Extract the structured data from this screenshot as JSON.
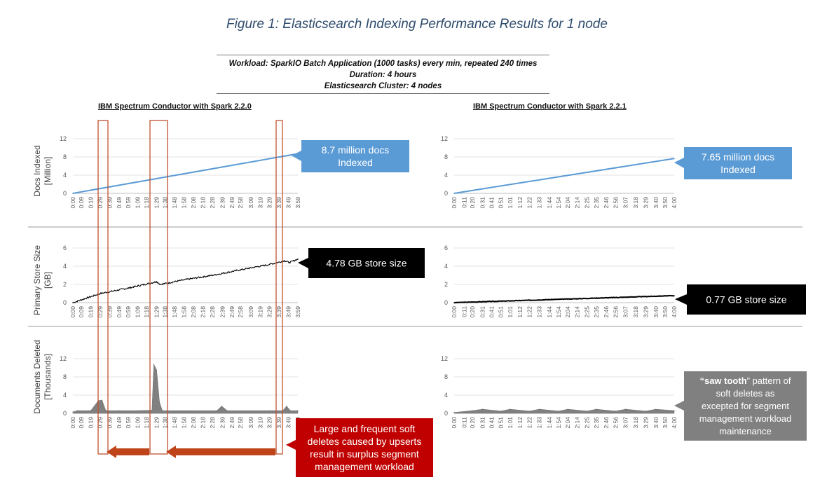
{
  "title": "Figure 1: Elasticsearch Indexing Performance Results for 1 node",
  "workload": {
    "line1": "Workload: SparkIO Batch Application (1000 tasks) every min, repeated 240 times",
    "line2": "Duration: 4 hours",
    "line3": "Elasticsearch Cluster: 4 nodes"
  },
  "subtitles": {
    "left": "IBM Spectrum Conductor with Spark 2.2.0",
    "right": "IBM Spectrum Conductor with Spark 2.2.1"
  },
  "ylabels": {
    "docs": [
      "Docs Indexed",
      "[Million]"
    ],
    "store": [
      "Primary Store Size",
      "[GB]"
    ],
    "deleted": [
      "Documents Deleted",
      "[Thousands]"
    ]
  },
  "x_ticks_left": [
    "0:00",
    "0:09",
    "0:19",
    "0:29",
    "0:39",
    "0:49",
    "0:59",
    "1:09",
    "1:18",
    "1:29",
    "1:38",
    "1:48",
    "1:58",
    "2:08",
    "2:18",
    "2:28",
    "2:39",
    "2:49",
    "2:58",
    "3:09",
    "3:19",
    "3:29",
    "3:39",
    "3:49",
    "3:59"
  ],
  "x_ticks_right": [
    "0:00",
    "0:11",
    "0:20",
    "0:31",
    "0:41",
    "0:51",
    "1:01",
    "1:12",
    "1:22",
    "1:33",
    "1:44",
    "1:54",
    "2:04",
    "2:14",
    "2:25",
    "2:35",
    "2:46",
    "2:56",
    "3:07",
    "3:18",
    "3:29",
    "3:40",
    "3:50",
    "4:00"
  ],
  "callouts": {
    "docs_left": [
      "8.7 million docs",
      "Indexed"
    ],
    "docs_right": [
      "7.65 million docs",
      "Indexed"
    ],
    "store_left": [
      "4.78 GB store size"
    ],
    "store_right": [
      "0.77 GB store size"
    ],
    "deleted_left": [
      "Large and frequent soft",
      "deletes caused by upserts",
      "result in surplus segment",
      "management workload"
    ],
    "deleted_right_bold": "“saw tooth",
    "deleted_right_rest": "” pattern of",
    "deleted_right": [
      "soft deletes as",
      "excepted for segment",
      "management workload",
      "maintenance"
    ]
  },
  "colors": {
    "blue_line": "#5b9bd5",
    "blue_box": "#5b9bd5",
    "black_box": "#000000",
    "red_box": "#c00000",
    "red_arrow": "#c0441a",
    "gray_box": "#808080",
    "area_fill": "#808080",
    "highlight_rect": "#c0502f",
    "title_color": "#2e4b6d"
  },
  "chart_data": [
    {
      "type": "line",
      "name": "Docs Indexed - Spark 2.2.0",
      "ylabel": "Docs Indexed [Million]",
      "ylim": [
        0,
        12
      ],
      "yticks": [
        0,
        4,
        8,
        12
      ],
      "x": [
        "0:00",
        "3:59"
      ],
      "values": [
        0,
        8.7
      ]
    },
    {
      "type": "line",
      "name": "Docs Indexed - Spark 2.2.1",
      "ylabel": "Docs Indexed [Million]",
      "ylim": [
        0,
        12
      ],
      "yticks": [
        0,
        4,
        8,
        12
      ],
      "x": [
        "0:00",
        "4:00"
      ],
      "values": [
        0,
        7.65
      ]
    },
    {
      "type": "line",
      "name": "Primary Store Size - Spark 2.2.0",
      "ylabel": "Primary Store Size [GB]",
      "ylim": [
        0,
        6
      ],
      "yticks": [
        0,
        2,
        4,
        6
      ],
      "x": [
        "0:00",
        "0:29",
        "0:59",
        "1:29",
        "1:33",
        "1:58",
        "2:28",
        "2:58",
        "3:29",
        "3:45",
        "3:50",
        "3:59"
      ],
      "values": [
        0,
        1.0,
        1.6,
        2.3,
        2.0,
        2.5,
        3.0,
        3.6,
        4.2,
        4.6,
        4.4,
        4.78
      ]
    },
    {
      "type": "line",
      "name": "Primary Store Size - Spark 2.2.1",
      "ylabel": "Primary Store Size [GB]",
      "ylim": [
        0,
        6
      ],
      "yticks": [
        0,
        2,
        4,
        6
      ],
      "x": [
        "0:00",
        "4:00"
      ],
      "values": [
        0,
        0.77
      ]
    },
    {
      "type": "area",
      "name": "Documents Deleted - Spark 2.2.0",
      "ylabel": "Documents Deleted [Thousands]",
      "ylim": [
        0,
        12
      ],
      "yticks": [
        0,
        4,
        8,
        12
      ],
      "x": [
        "0:00",
        "0:05",
        "0:19",
        "0:27",
        "0:31",
        "0:35",
        "0:49",
        "1:09",
        "1:24",
        "1:26",
        "1:29",
        "1:32",
        "1:35",
        "1:58",
        "2:33",
        "2:38",
        "2:44",
        "3:29",
        "3:43",
        "3:47",
        "3:51",
        "3:59"
      ],
      "values": [
        0.3,
        0.6,
        0.6,
        2.8,
        2.9,
        0.6,
        0.6,
        0.6,
        0.7,
        10.8,
        9.5,
        2.5,
        0.6,
        0.6,
        0.6,
        1.6,
        0.6,
        0.6,
        0.6,
        1.6,
        0.6,
        0.6
      ]
    },
    {
      "type": "area",
      "name": "Documents Deleted - Spark 2.2.1",
      "ylabel": "Documents Deleted [Thousands]",
      "ylim": [
        0,
        12
      ],
      "yticks": [
        0,
        4,
        8,
        12
      ],
      "x": [
        "0:00",
        "0:20",
        "0:31",
        "0:51",
        "1:01",
        "1:22",
        "1:33",
        "1:54",
        "2:04",
        "2:25",
        "2:35",
        "2:56",
        "3:07",
        "3:29",
        "3:40",
        "4:00"
      ],
      "values": [
        0.2,
        0.6,
        0.9,
        0.5,
        0.9,
        0.5,
        0.9,
        0.5,
        0.9,
        0.5,
        0.9,
        0.5,
        0.9,
        0.5,
        0.9,
        0.6
      ]
    }
  ]
}
